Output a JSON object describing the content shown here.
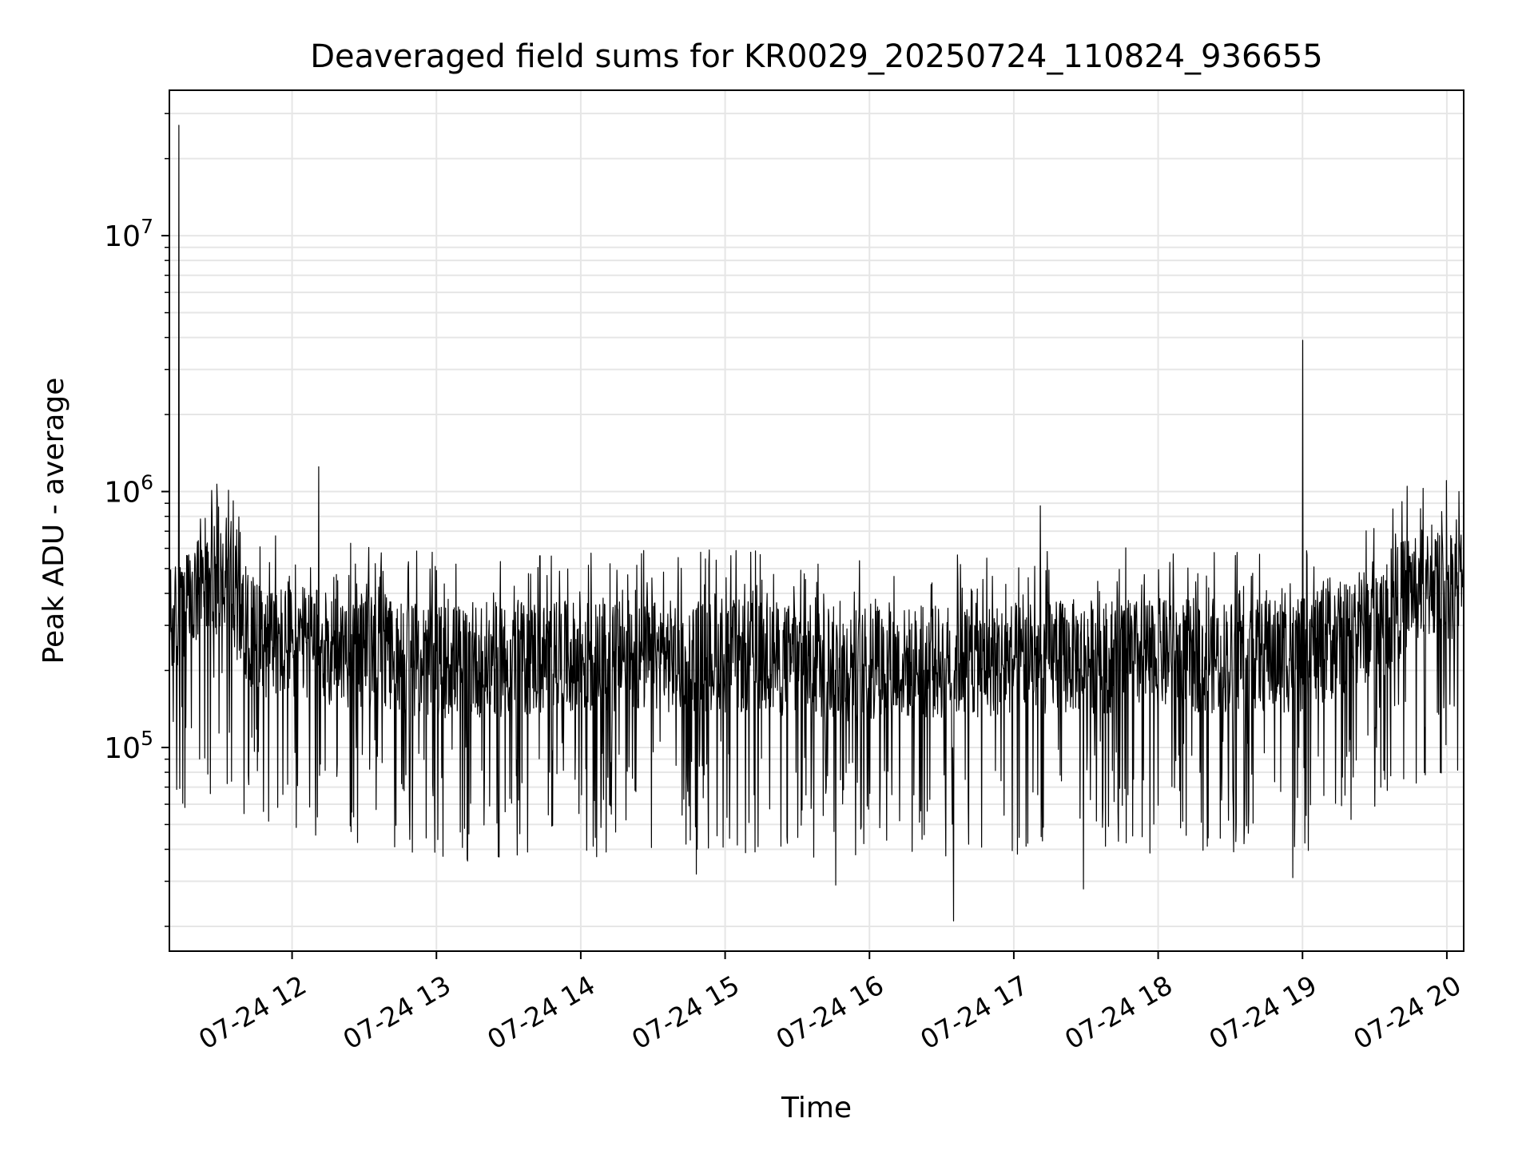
{
  "chart_data": {
    "type": "line",
    "title": "Deaveraged field sums for KR0029_20250724_110824_936655",
    "xlabel": "Time",
    "ylabel": "Peak ADU - average",
    "x_range": [
      "2025-07-24 11:09",
      "2025-07-24 20:07"
    ],
    "x_ticks": [
      "07-24 12",
      "07-24 13",
      "07-24 14",
      "07-24 15",
      "07-24 16",
      "07-24 17",
      "07-24 18",
      "07-24 19",
      "07-24 20"
    ],
    "y_scale": "log",
    "ylim": [
      16000,
      37000000
    ],
    "y_ticks": [
      {
        "value": 100000,
        "base": "10",
        "exp": "5"
      },
      {
        "value": 1000000,
        "base": "10",
        "exp": "6"
      },
      {
        "value": 10000000,
        "base": "10",
        "exp": "7"
      }
    ],
    "grid": true,
    "line_color": "#000000",
    "grid_color": "#e6e6e6",
    "series": [
      {
        "approx_points": 3000,
        "typical_baseline": [
          {
            "x": "2025-07-24 11:10",
            "y": 320000
          },
          {
            "x": "2025-07-24 11:30",
            "y": 500000
          },
          {
            "x": "2025-07-24 11:45",
            "y": 280000
          },
          {
            "x": "2025-07-24 13:00",
            "y": 230000
          },
          {
            "x": "2025-07-24 15:00",
            "y": 240000
          },
          {
            "x": "2025-07-24 16:00",
            "y": 220000
          },
          {
            "x": "2025-07-24 17:30",
            "y": 240000
          },
          {
            "x": "2025-07-24 19:00",
            "y": 240000
          },
          {
            "x": "2025-07-24 19:35",
            "y": 340000
          },
          {
            "x": "2025-07-24 19:45",
            "y": 450000
          },
          {
            "x": "2025-07-24 20:07",
            "y": 470000
          }
        ],
        "notable_points": [
          {
            "x": "2025-07-24 11:13",
            "y": 27000000
          },
          {
            "x": "2025-07-24 11:29",
            "y": 930000
          },
          {
            "x": "2025-07-24 11:26",
            "y": 66000
          },
          {
            "x": "2025-07-24 12:11",
            "y": 1250000
          },
          {
            "x": "2025-07-24 12:50",
            "y": 39000
          },
          {
            "x": "2025-07-24 13:13",
            "y": 36000
          },
          {
            "x": "2025-07-24 14:48",
            "y": 32000
          },
          {
            "x": "2025-07-24 15:46",
            "y": 29000
          },
          {
            "x": "2025-07-24 16:35",
            "y": 21000
          },
          {
            "x": "2025-07-24 17:11",
            "y": 880000
          },
          {
            "x": "2025-07-24 17:29",
            "y": 28000
          },
          {
            "x": "2025-07-24 18:56",
            "y": 31000
          },
          {
            "x": "2025-07-24 19:00",
            "y": 3900000
          },
          {
            "x": "2025-07-24 20:05",
            "y": 1000000
          }
        ]
      }
    ]
  }
}
